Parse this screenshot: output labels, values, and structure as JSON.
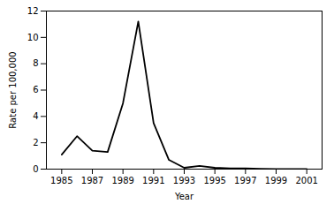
{
  "chart_data": {
    "type": "line",
    "x": [
      1985,
      1986,
      1987,
      1988,
      1989,
      1990,
      1991,
      1992,
      1993,
      1994,
      1995,
      1996,
      1997,
      1998,
      1999,
      2000,
      2001
    ],
    "values": [
      1.1,
      2.5,
      1.4,
      1.3,
      5.0,
      11.2,
      3.5,
      0.7,
      0.1,
      0.25,
      0.1,
      0.05,
      0.05,
      0.02,
      0.01,
      0.01,
      0.01
    ],
    "xlabel": "Year",
    "ylabel": "Rate per 100,000",
    "xlim": [
      1984,
      2002
    ],
    "ylim": [
      0,
      12
    ],
    "xticks": [
      1985,
      1987,
      1989,
      1991,
      1993,
      1995,
      1997,
      1999,
      2001
    ],
    "yticks": [
      0,
      2,
      4,
      6,
      8,
      10,
      12
    ],
    "color": "#000000",
    "grid": false
  }
}
